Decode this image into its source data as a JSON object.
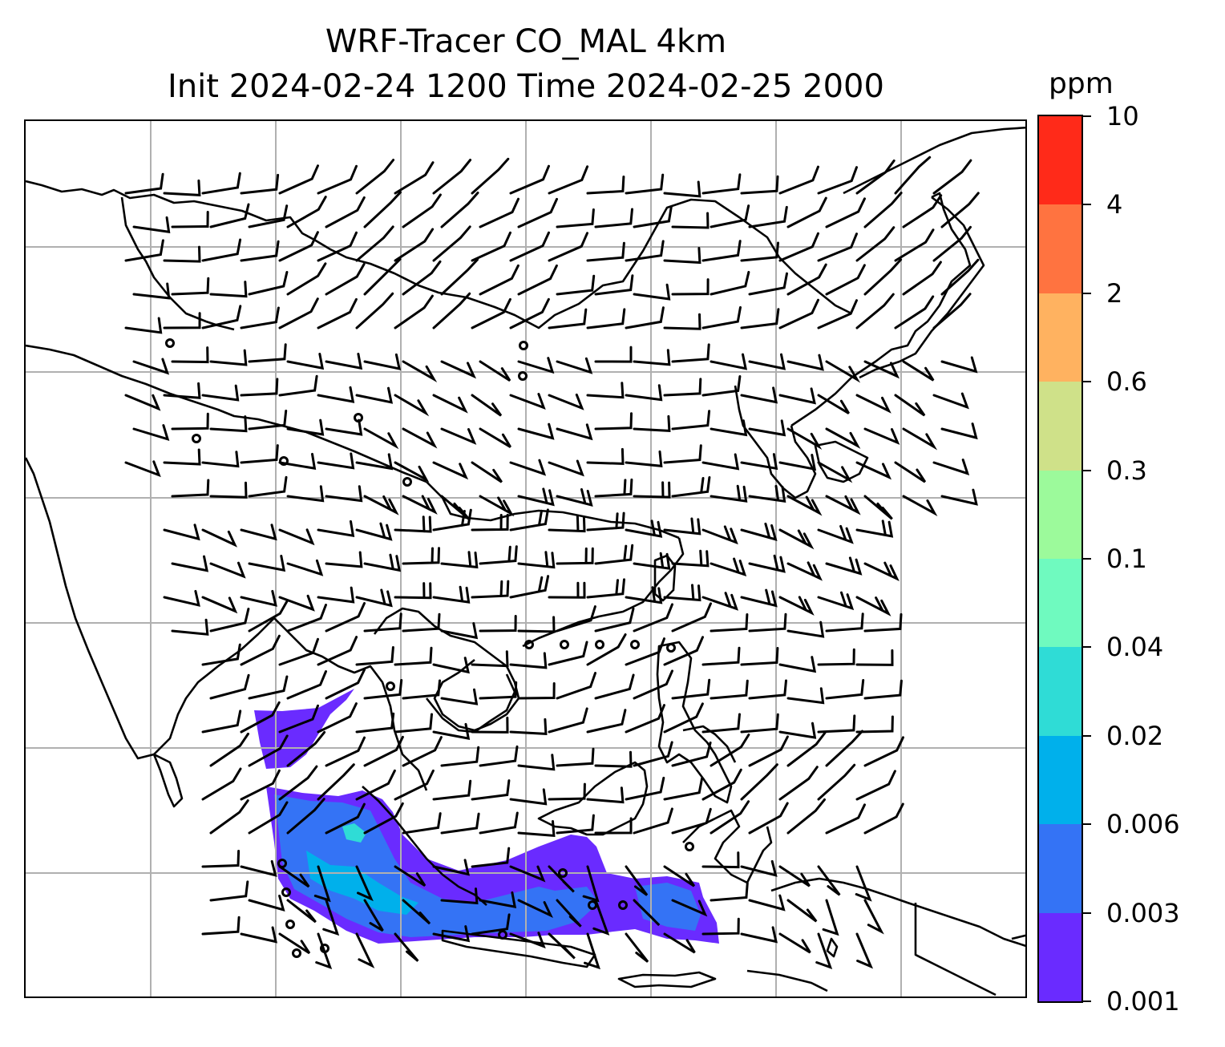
{
  "title": {
    "line1": "WRF-Tracer CO_MAL 4km",
    "line2": "Init 2024-02-24 1200 Time 2024-02-25 2000"
  },
  "colorbar": {
    "unit": "ppm",
    "tick_labels": [
      "0.001",
      "0.003",
      "0.006",
      "0.02",
      "0.04",
      "0.1",
      "0.3",
      "0.6",
      "2",
      "4",
      "10"
    ],
    "colors": [
      "#6a2bff",
      "#3473f5",
      "#00b0eb",
      "#2fdcd6",
      "#6ffabf",
      "#9cfa9b",
      "#cfe189",
      "#ffb260",
      "#ff7340",
      "#ff2a19"
    ]
  },
  "map": {
    "field": "CO_MAL",
    "overlay": "wind barbs",
    "gridlines": "on",
    "coastline_color": "#000000",
    "gridline_color": "#b0b0b0"
  }
}
